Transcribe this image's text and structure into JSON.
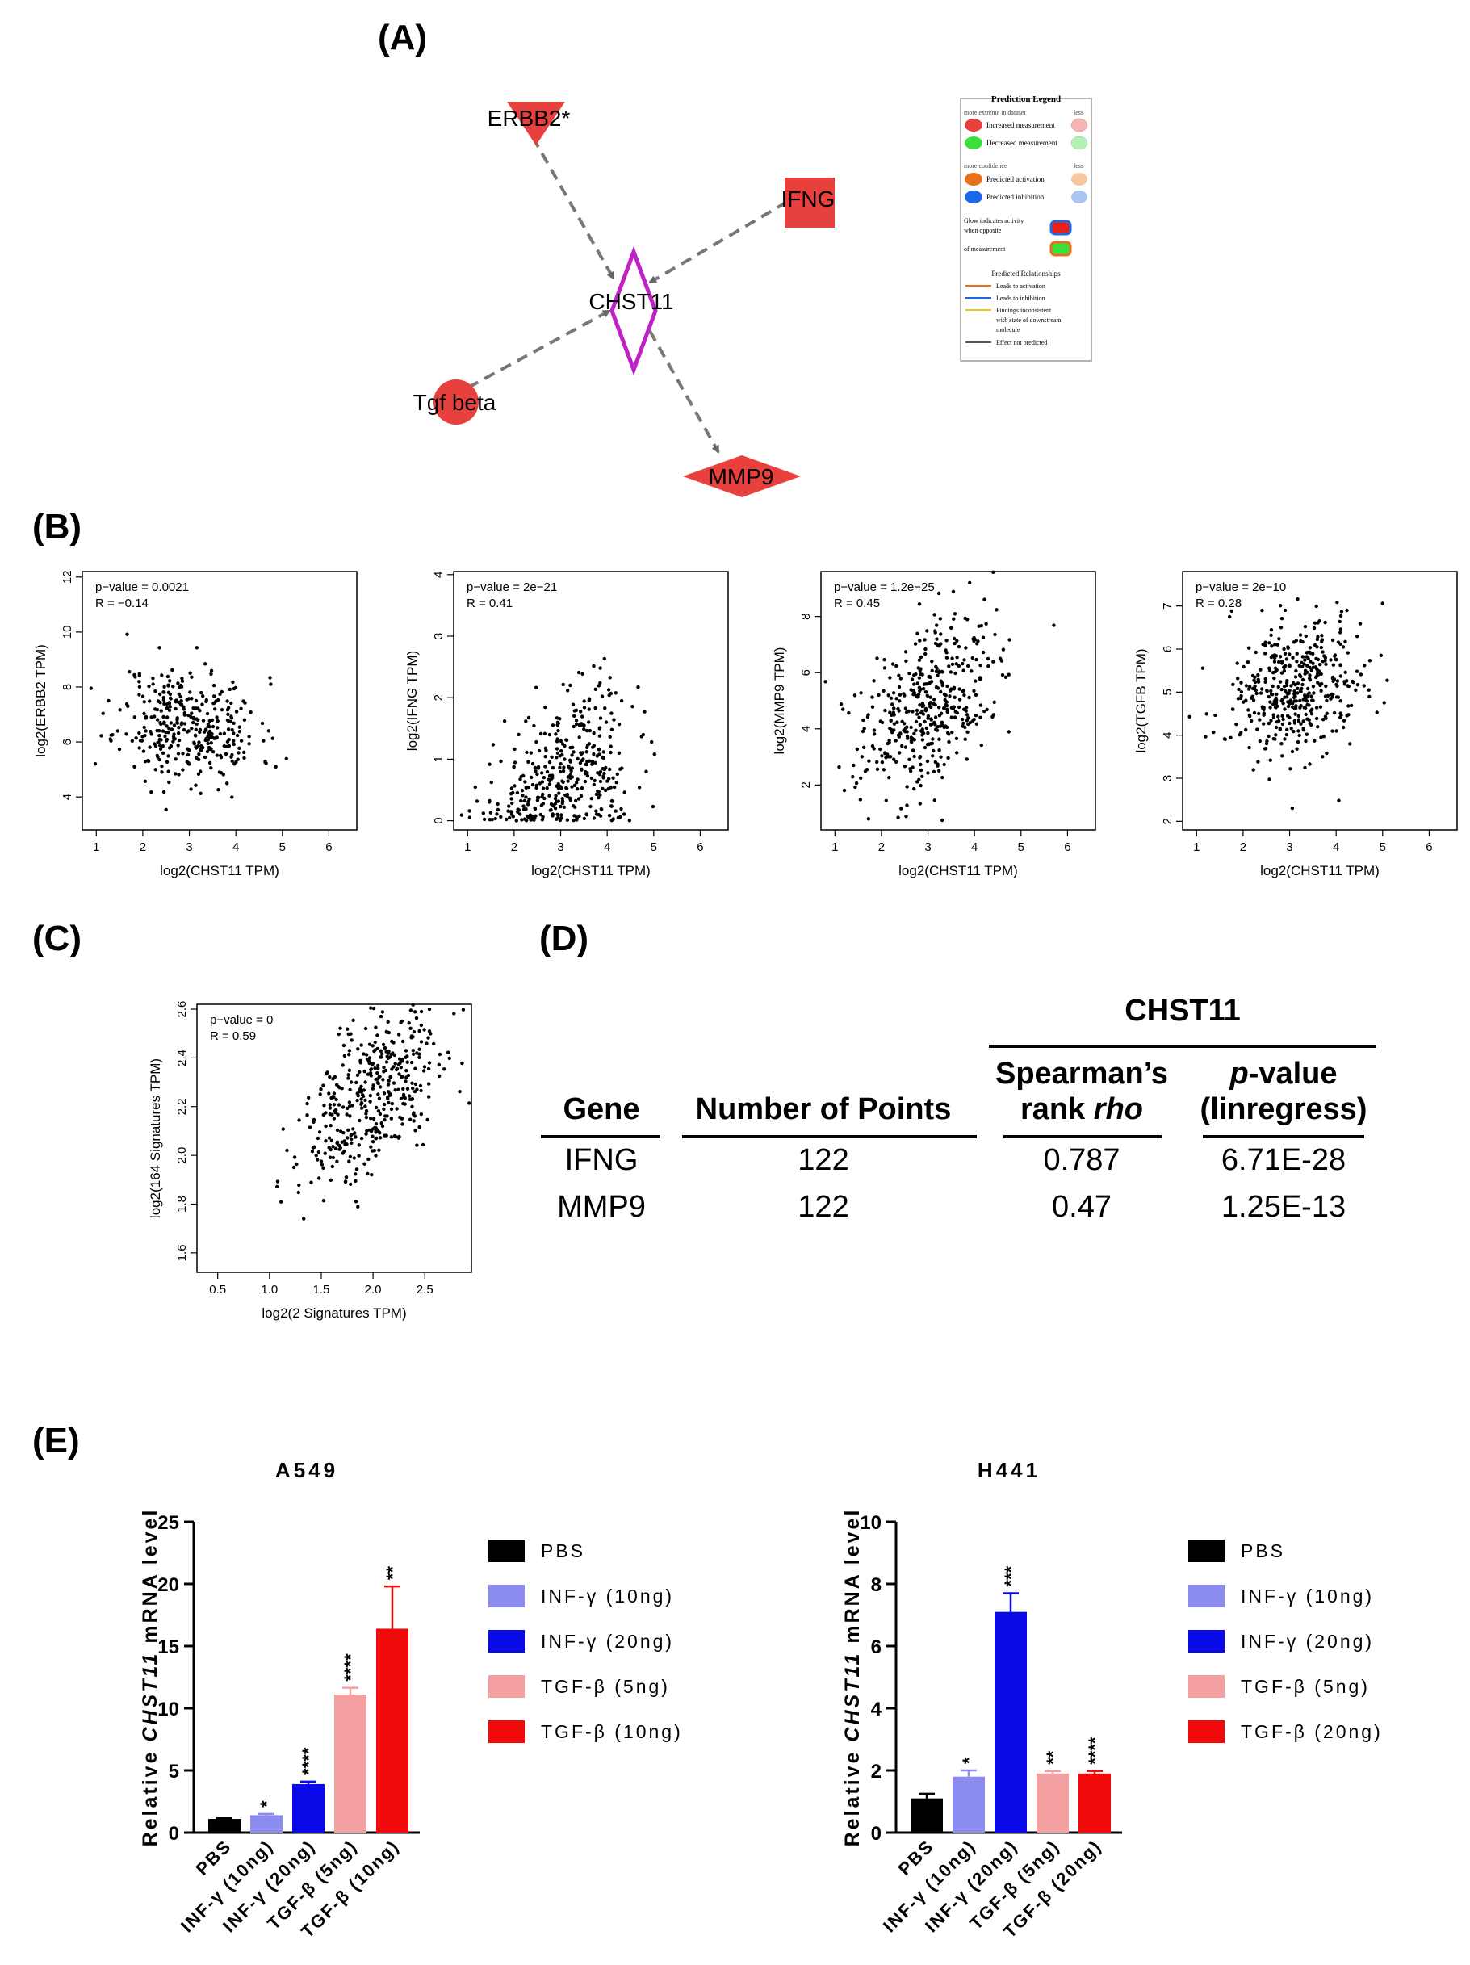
{
  "labels": {
    "A": "(A)",
    "B": "(B)",
    "C": "(C)",
    "D": "(D)",
    "E": "(E)"
  },
  "network": {
    "nodes": [
      {
        "id": "erbb2",
        "label": "ERBB2*",
        "shape": "triangle-down",
        "color": "#e8403c"
      },
      {
        "id": "ifng",
        "label": "IFNG",
        "shape": "square",
        "color": "#e8403c"
      },
      {
        "id": "chst11",
        "label": "CHST11",
        "shape": "diamond-outline",
        "color": "#c020c8"
      },
      {
        "id": "tgfb",
        "label": "Tgf beta",
        "shape": "circle",
        "color": "#e8403c"
      },
      {
        "id": "mmp9",
        "label": "MMP9",
        "shape": "diamond",
        "color": "#e8403c"
      }
    ],
    "edges": [
      [
        "erbb2",
        "chst11"
      ],
      [
        "ifng",
        "chst11"
      ],
      [
        "tgfb",
        "chst11"
      ],
      [
        "chst11",
        "mmp9"
      ]
    ],
    "legend": {
      "title": "Prediction Legend",
      "sec1": "more extreme in dataset",
      "less": "less",
      "increased": "Increased measurement",
      "decreased": "Decreased measurement",
      "sec2": "more confidence",
      "activation": "Predicted activation",
      "inhibition": "Predicted inhibition",
      "glow": [
        "Glow indicates activity",
        "when opposite",
        "of measurement"
      ],
      "rel_title": "Predicted Relationships",
      "rel": [
        "Leads to activation",
        "Leads to inhibition",
        "Findings inconsistent",
        "with state of downstream",
        "molecule",
        "Effect not predicted"
      ],
      "colors": {
        "red": "#e8403c",
        "lightred": "#f4b5b3",
        "green": "#3ce03c",
        "lightgreen": "#b5f0b5",
        "orange": "#e8701a",
        "lightorange": "#f6c7a0",
        "blue": "#1a6ae8",
        "lightblue": "#a9c6f2",
        "yellow": "#e8c81a",
        "gray": "#555555"
      }
    }
  },
  "chart_data": [
    {
      "type": "scatter",
      "id": "b1",
      "pvalue": "p−value = 0.0021",
      "r": "R = −0.14",
      "xlabel": "log2(CHST11 TPM)",
      "ylabel": "log2(ERBB2 TPM)",
      "xlim": [
        0.7,
        6.6
      ],
      "ylim": [
        2.8,
        12.2
      ],
      "xticks": [
        1,
        2,
        3,
        4,
        5,
        6
      ],
      "yticks": [
        4,
        6,
        8,
        10,
        12
      ],
      "mean": [
        3.0,
        6.6
      ],
      "sd": [
        0.75,
        1.05
      ],
      "slope": -0.2,
      "n": 360,
      "seed": 11
    },
    {
      "type": "scatter",
      "id": "b2",
      "pvalue": "p−value = 2e−21",
      "r": "R = 0.41",
      "xlabel": "log2(CHST11 TPM)",
      "ylabel": "log2(IFNG TPM)",
      "xlim": [
        0.7,
        6.6
      ],
      "ylim": [
        -0.15,
        4.05
      ],
      "xticks": [
        1,
        2,
        3,
        4,
        5,
        6
      ],
      "yticks": [
        0,
        1,
        2,
        3,
        4
      ],
      "mean": [
        3.1,
        0.7
      ],
      "sd": [
        0.75,
        0.65
      ],
      "slope": 0.35,
      "n": 400,
      "seed": 22
    },
    {
      "type": "scatter",
      "id": "b3",
      "pvalue": "p−value = 1.2e−25",
      "r": "R = 0.45",
      "xlabel": "log2(CHST11 TPM)",
      "ylabel": "log2(MMP9 TPM)",
      "xlim": [
        0.7,
        6.6
      ],
      "ylim": [
        0.4,
        9.6
      ],
      "xticks": [
        1,
        2,
        3,
        4,
        5,
        6
      ],
      "yticks": [
        2,
        4,
        6,
        8
      ],
      "mean": [
        3.0,
        4.8
      ],
      "sd": [
        0.75,
        1.4
      ],
      "slope": 0.85,
      "n": 430,
      "seed": 33
    },
    {
      "type": "scatter",
      "id": "b4",
      "pvalue": "p−value = 2e−10",
      "r": "R = 0.28",
      "xlabel": "log2(CHST11 TPM)",
      "ylabel": "log2(TGFB TPM)",
      "xlim": [
        0.7,
        6.6
      ],
      "ylim": [
        1.8,
        7.8
      ],
      "xticks": [
        1,
        2,
        3,
        4,
        5,
        6
      ],
      "yticks": [
        2,
        3,
        4,
        5,
        6,
        7
      ],
      "mean": [
        3.1,
        5.1
      ],
      "sd": [
        0.75,
        0.85
      ],
      "slope": 0.3,
      "n": 440,
      "seed": 44
    },
    {
      "type": "scatter",
      "id": "c",
      "pvalue": "p−value = 0",
      "r": "R = 0.59",
      "xlabel": "log2(2 Signatures TPM)",
      "ylabel": "log2(164 Signatures TPM)",
      "xlim": [
        0.3,
        2.95
      ],
      "ylim": [
        1.52,
        2.62
      ],
      "xticks": [
        0.5,
        1.0,
        1.5,
        2.0,
        2.5
      ],
      "ytick_labels": [
        "1.6",
        "1.8",
        "2.0",
        "2.2",
        "2.4",
        "2.6"
      ],
      "yticks": [
        1.6,
        1.8,
        2.0,
        2.2,
        2.4,
        2.6
      ],
      "mean": [
        2.0,
        2.25
      ],
      "sd": [
        0.35,
        0.15
      ],
      "slope": 0.25,
      "n": 420,
      "seed": 55
    },
    {
      "type": "bar",
      "id": "e1",
      "title": "A549",
      "ylabel_pre": "Relative ",
      "ylabel_gene": "CHST11",
      "ylabel_post": " mRNA level",
      "categories": [
        "PBS",
        "INF-γ (10ng)",
        "INF-γ (20ng)",
        "TGF-β (5ng)",
        "TGF-β (10ng)"
      ],
      "values": [
        1.1,
        1.4,
        3.9,
        11.1,
        16.4
      ],
      "errors": [
        0.05,
        0.1,
        0.2,
        0.55,
        3.4
      ],
      "stars": [
        "",
        "*",
        "****",
        "****",
        "**"
      ],
      "colors": [
        "#000000",
        "#8c8cf0",
        "#0a0ae8",
        "#f4a0a0",
        "#f00a0a"
      ],
      "ylim": [
        0,
        25
      ],
      "yticks": [
        0,
        5,
        10,
        15,
        20,
        25
      ]
    },
    {
      "type": "bar",
      "id": "e2",
      "title": "H441",
      "ylabel_pre": "Relative ",
      "ylabel_gene": "CHST11",
      "ylabel_post": " mRNA level",
      "categories": [
        "PBS",
        "INF-γ (10ng)",
        "INF-γ (20ng)",
        "TGF-β (5ng)",
        "TGF-β (20ng)"
      ],
      "values": [
        1.1,
        1.8,
        7.1,
        1.9,
        1.9
      ],
      "errors": [
        0.15,
        0.2,
        0.6,
        0.08,
        0.08
      ],
      "stars": [
        "",
        "*",
        "***",
        "**",
        "****"
      ],
      "colors": [
        "#000000",
        "#8c8cf0",
        "#0a0ae8",
        "#f4a0a0",
        "#f00a0a"
      ],
      "ylim": [
        0,
        10
      ],
      "yticks": [
        0,
        2,
        4,
        6,
        8,
        10
      ]
    }
  ],
  "legend_a549": [
    "PBS",
    "INF-γ (10ng)",
    "INF-γ (20ng)",
    "TGF-β (5ng)",
    "TGF-β (10ng)"
  ],
  "legend_h441": [
    "PBS",
    "INF-γ (10ng)",
    "INF-γ (20ng)",
    "TGF-β (5ng)",
    "TGF-β (20ng)"
  ],
  "legend_colors": [
    "#000000",
    "#8c8cf0",
    "#0a0ae8",
    "#f4a0a0",
    "#f00a0a"
  ],
  "table": {
    "group": "CHST11",
    "h_gene": "Gene",
    "h_points": "Number of Points",
    "h_rho1": "Spearman’s",
    "h_rho2a": "rank ",
    "h_rho2b": "rho",
    "h_p1a": "p",
    "h_p1b": "-value",
    "h_p2": "(linregress)",
    "rows": [
      {
        "gene": "IFNG",
        "points": "122",
        "rho": "0.787",
        "p": "6.71E-28"
      },
      {
        "gene": "MMP9",
        "points": "122",
        "rho": "0.47",
        "p": "1.25E-13"
      }
    ]
  }
}
